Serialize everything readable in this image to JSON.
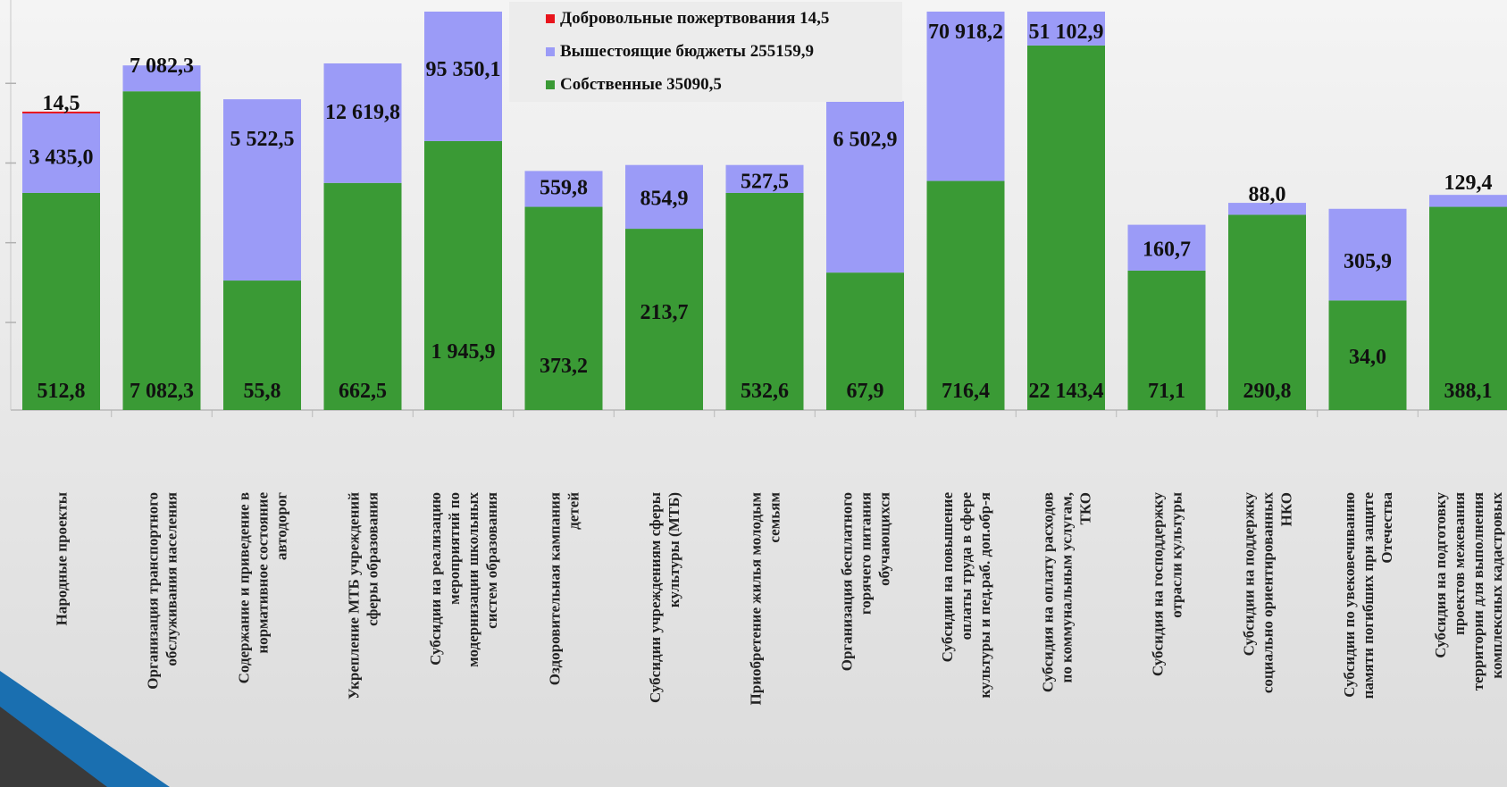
{
  "chart_data": {
    "type": "bar",
    "stacked": true,
    "legend": {
      "placement": "top-center",
      "entries": [
        {
          "name": "Добровольные пожертвования 14,5",
          "color": "#e8141c"
        },
        {
          "name": "Вышестоящие бюджеты 255159,9",
          "color": "#9b9bf7"
        },
        {
          "name": "Собственные 35090,5",
          "color": "#3a9a35"
        }
      ]
    },
    "categories": [
      [
        "Народные проекты"
      ],
      [
        "Организация транспортного",
        "обслуживания населения"
      ],
      [
        "Содержание и приведение в",
        "нормативное состояние",
        "автодорог"
      ],
      [
        "Укрепление МТБ учреждений",
        "сферы образования"
      ],
      [
        "Субсидии на реализацию",
        "мероприятий по",
        "модернизации школьных",
        "систем образования"
      ],
      [
        "Оздоровительная кампания",
        "детей"
      ],
      [
        "Субсидии учреждениям сферы",
        "культуры (МТБ)"
      ],
      [
        "Приобретение жилья молодым",
        "семьям"
      ],
      [
        "Организация бесплатного",
        "горячего питания",
        "обучающихся"
      ],
      [
        "Субсидии на повышение",
        "оплаты труда в сфере",
        "культуры и пед.раб. доп.обр-я"
      ],
      [
        "Субсидия на оплату расходов",
        "по коммунальным услугам,",
        "ТКО"
      ],
      [
        "Субсидия на господдержку",
        "отрасли культуры"
      ],
      [
        "Субсидии на поддержку",
        "социально ориентированных",
        "НКО"
      ],
      [
        "Субсидии по увековечиванию",
        "памяти погибших при защите",
        "Отечества"
      ],
      [
        "Субсидия на подготовку",
        "проектов межевания",
        "территории для выполнения",
        "комплексных кадастровых"
      ]
    ],
    "series": [
      {
        "name": "Собственные",
        "color": "#3a9a35",
        "labels": [
          "512,8",
          "7 082,3",
          "55,8",
          "662,5",
          "1 945,9",
          "373,2",
          "213,7",
          "532,6",
          "67,9",
          "716,4",
          "22 143,4",
          "71,1",
          "290,8",
          "34,0",
          "388,1"
        ],
        "bar_share": [
          0.545,
          0.8,
          0.325,
          0.57,
          0.675,
          0.51,
          0.455,
          0.545,
          0.345,
          0.575,
          0.915,
          0.35,
          0.49,
          0.275,
          0.51
        ]
      },
      {
        "name": "Вышестоящие бюджеты",
        "color": "#9b9bf7",
        "labels": [
          "3 435,0",
          "7 082,3",
          "5 522,5",
          "12 619,8",
          "95 350,1",
          "559,8",
          "854,9",
          "527,5",
          "6 502,9",
          "70 918,2",
          "51 102,9",
          "160,7",
          "88,0",
          "305,9",
          "129,4"
        ],
        "bar_share": [
          0.2,
          0.065,
          0.455,
          0.3,
          0.325,
          0.09,
          0.16,
          0.07,
          0.43,
          0.425,
          0.085,
          0.115,
          0.03,
          0.23,
          0.03
        ]
      },
      {
        "name": "Добровольные пожертвования",
        "color": "#e8141c",
        "labels": [
          "14,5",
          "",
          "",
          "",
          "",
          "",
          "",
          "",
          "",
          "",
          "",
          "",
          "",
          "",
          ""
        ],
        "bar_share": [
          0.004,
          0,
          0,
          0,
          0,
          0,
          0,
          0,
          0,
          0,
          0,
          0,
          0,
          0,
          0
        ]
      }
    ]
  }
}
